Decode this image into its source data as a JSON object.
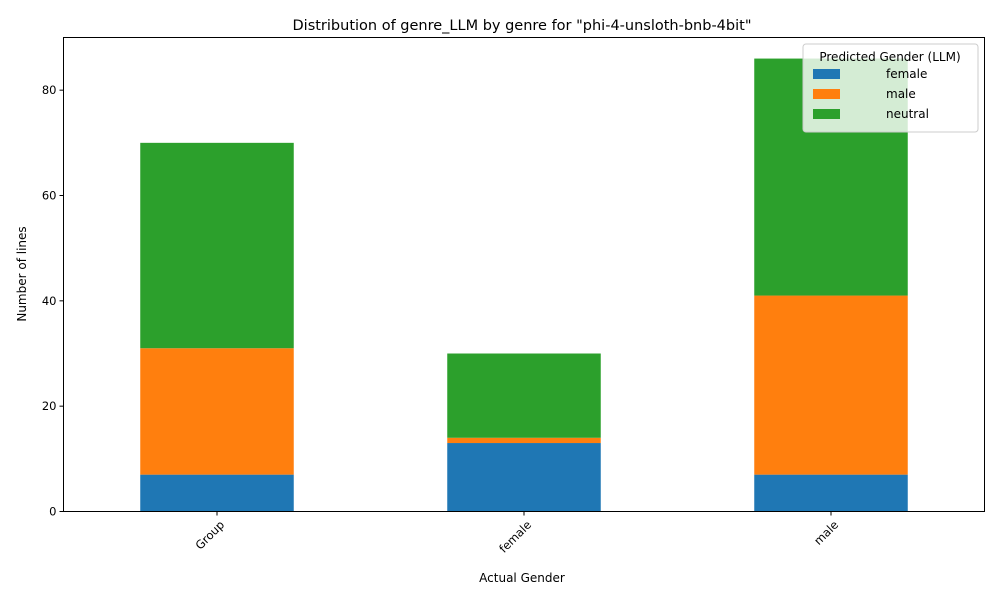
{
  "chart_data": {
    "type": "bar",
    "stacked": true,
    "title": "Distribution of genre_LLM by genre for \"phi-4-unsloth-bnb-4bit\"",
    "xlabel": "Actual Gender",
    "ylabel": "Number of lines",
    "categories": [
      "Group",
      "female",
      "male"
    ],
    "series": [
      {
        "name": "female",
        "color": "#1f77b4",
        "values": [
          7,
          13,
          7
        ]
      },
      {
        "name": "male",
        "color": "#ff7f0e",
        "values": [
          24,
          1,
          34
        ]
      },
      {
        "name": "neutral",
        "color": "#2ca02c",
        "values": [
          39,
          16,
          45
        ]
      }
    ],
    "ylim": [
      0,
      90
    ],
    "yticks": [
      0,
      20,
      40,
      60,
      80
    ],
    "xtick_rotation": 45,
    "grid": false,
    "legend": {
      "title": "Predicted Gender (LLM)",
      "placement": "top-right"
    }
  }
}
